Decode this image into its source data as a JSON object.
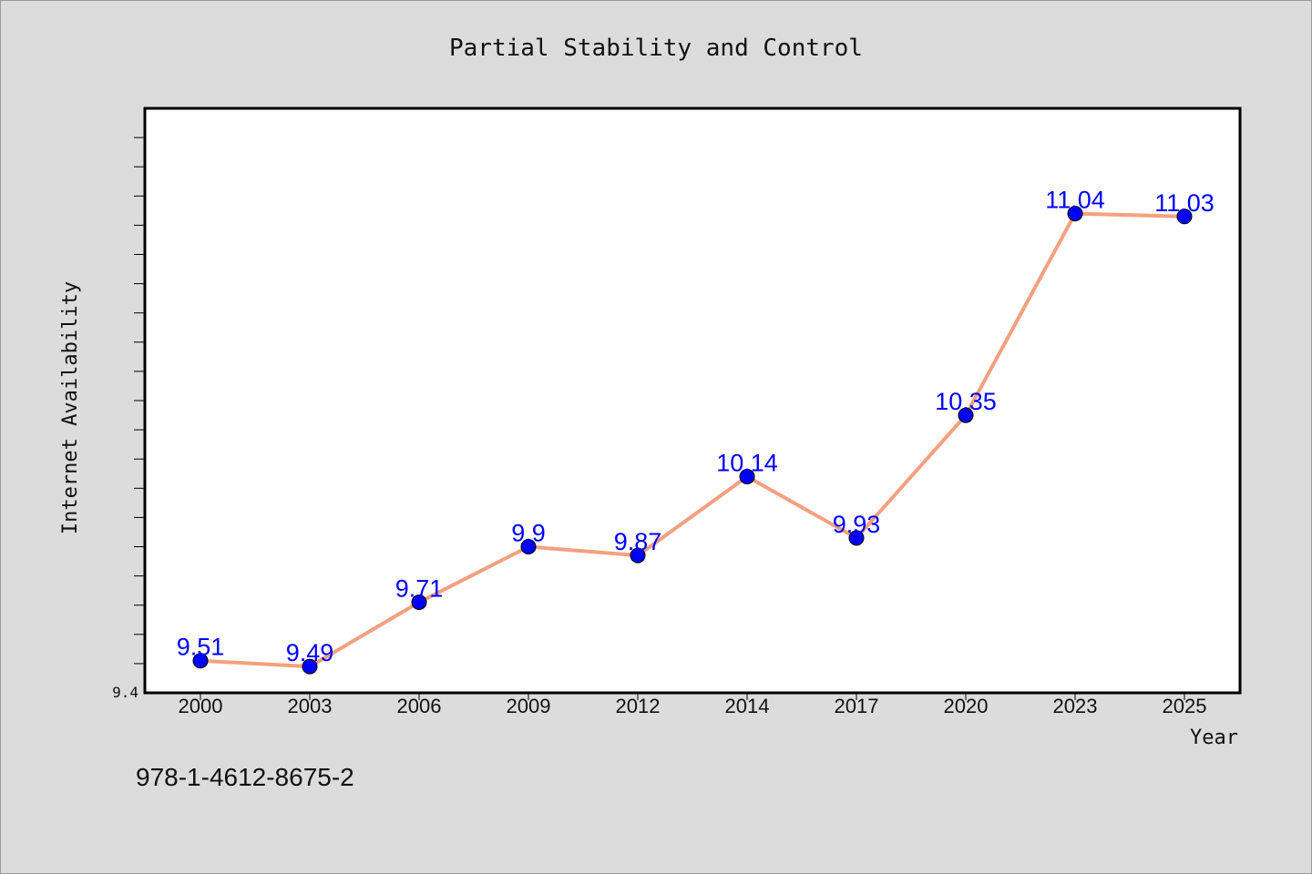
{
  "chart_data": {
    "type": "line",
    "title": "Partial Stability and Control",
    "xlabel": "Year",
    "ylabel": "Internet Availability",
    "categories": [
      "2000",
      "2003",
      "2006",
      "2009",
      "2012",
      "2014",
      "2017",
      "2020",
      "2023",
      "2025"
    ],
    "series": [
      {
        "values": [
          9.51,
          9.49,
          9.71,
          9.9,
          9.87,
          10.14,
          9.93,
          10.35,
          11.04,
          11.03
        ],
        "labels": [
          "9.51",
          "9.49",
          "9.71",
          "9.9",
          "9.87",
          "10.14",
          "9.93",
          "10.35",
          "11.04",
          "11.03"
        ]
      }
    ],
    "ylim": [
      9.4,
      11.4
    ],
    "ytick_labels": [
      "9.4"
    ],
    "grid": false,
    "legend": "none",
    "colors": {
      "line": "#f4a07e",
      "marker": "#0000ff",
      "data_label": "#0000ff",
      "plot_background": "#ffffff",
      "figure_background": "#dcdcdc"
    }
  },
  "footer": {
    "isbn": "978-1-4612-8675-2"
  }
}
